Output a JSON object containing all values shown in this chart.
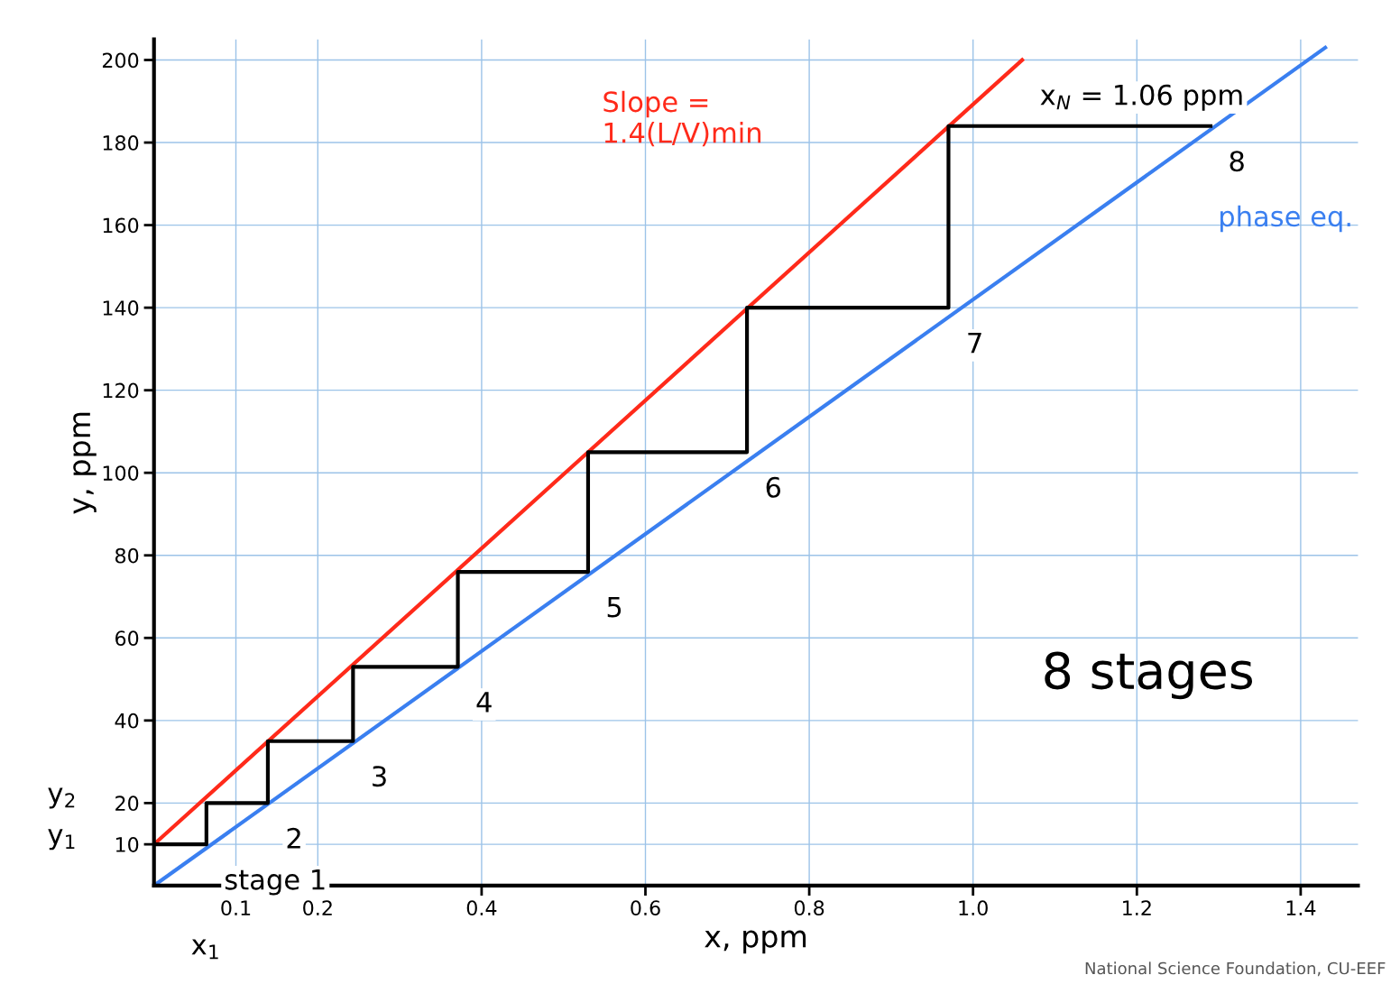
{
  "chart_data": {
    "type": "line",
    "xlabel": "x, ppm",
    "ylabel": "y, ppm",
    "xlim": [
      0,
      1.47
    ],
    "ylim": [
      0,
      205
    ],
    "xticks": [
      0.1,
      0.2,
      0.4,
      0.6,
      0.8,
      {
        "value": 1.0,
        "label": "1.0"
      },
      1.2,
      1.4
    ],
    "yticks": [
      10,
      20,
      40,
      60,
      80,
      100,
      120,
      140,
      160,
      180,
      200
    ],
    "grid": true,
    "legend": false,
    "line_style": "solid",
    "marker": "none",
    "series": [
      {
        "x": [
          0,
          1.06
        ],
        "values": [
          10,
          200
        ],
        "color": "#ff2a1a"
      },
      {
        "x": [
          0,
          1.43
        ],
        "values": [
          0,
          203
        ],
        "color": "#3a7ff0"
      },
      {
        "x": [
          0,
          0.064,
          0.064,
          0.139,
          0.139,
          0.243,
          0.243,
          0.371,
          0.371,
          0.53,
          0.53,
          0.724,
          0.724,
          0.97,
          0.97,
          1.29
        ],
        "values": [
          10,
          10,
          20,
          20,
          35,
          35,
          53,
          53,
          76,
          76,
          105,
          105,
          140,
          140,
          184,
          184
        ],
        "color": "#000000"
      }
    ],
    "annotations": [
      "Slope =\n1.4(L/V)min",
      {
        "text": "x$_{N}$ = 1.06 ppm",
        "x": 1.06,
        "y": 200
      },
      "phase eq.",
      {
        "text": "stage 1",
        "x": 0.064,
        "y": 10
      },
      {
        "text": "2",
        "x": 0.139,
        "y": 20
      },
      {
        "text": "3",
        "x": 0.243,
        "y": 35
      },
      {
        "text": "4",
        "x": 0.371,
        "y": 53
      },
      {
        "text": "5",
        "x": 0.53,
        "y": 76
      },
      {
        "text": "6",
        "x": 0.724,
        "y": 105
      },
      {
        "text": "7",
        "x": 0.97,
        "y": 140
      },
      {
        "text": "8",
        "x": 1.29,
        "y": 184
      },
      "y$_{1}$",
      "y$_{2}$",
      "x$_{1}$",
      "8 stages",
      "National Science Foundation, CU-EEF"
    ]
  }
}
